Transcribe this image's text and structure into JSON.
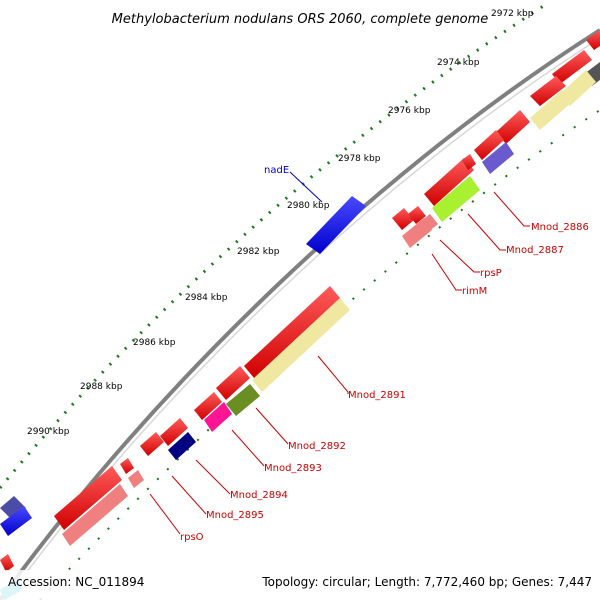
{
  "title": "Methylobacterium nodulans ORS 2060, complete genome",
  "footer": {
    "accession": "Accession: NC_011894",
    "topology": "Topology: circular; Length: 7,772,460 bp; Genes: 7,447"
  },
  "colors": {
    "backbone": "#808080",
    "tick_minor": "#1a7a1a",
    "forward_gene": "#ff0000",
    "reverse_gene": "#ff0000",
    "label_red": "#cc0000",
    "label_blue": "#0000cc"
  },
  "ticks": [
    {
      "label": "2972 kbp"
    },
    {
      "label": "2974 kbp"
    },
    {
      "label": "2976 kbp"
    },
    {
      "label": "2978 kbp"
    },
    {
      "label": "2980 kbp"
    },
    {
      "label": "2982 kbp"
    },
    {
      "label": "2984 kbp"
    },
    {
      "label": "2986 kbp"
    },
    {
      "label": "2988 kbp"
    },
    {
      "label": "2990 kbp"
    }
  ],
  "gene_labels": [
    {
      "name": "nadE"
    },
    {
      "name": "Mnod_2886"
    },
    {
      "name": "Mnod_2887"
    },
    {
      "name": "rpsP"
    },
    {
      "name": "rimM"
    },
    {
      "name": "Mnod_2891"
    },
    {
      "name": "Mnod_2892"
    },
    {
      "name": "Mnod_2893"
    },
    {
      "name": "Mnod_2894"
    },
    {
      "name": "Mnod_2895"
    },
    {
      "name": "rpsO"
    }
  ]
}
